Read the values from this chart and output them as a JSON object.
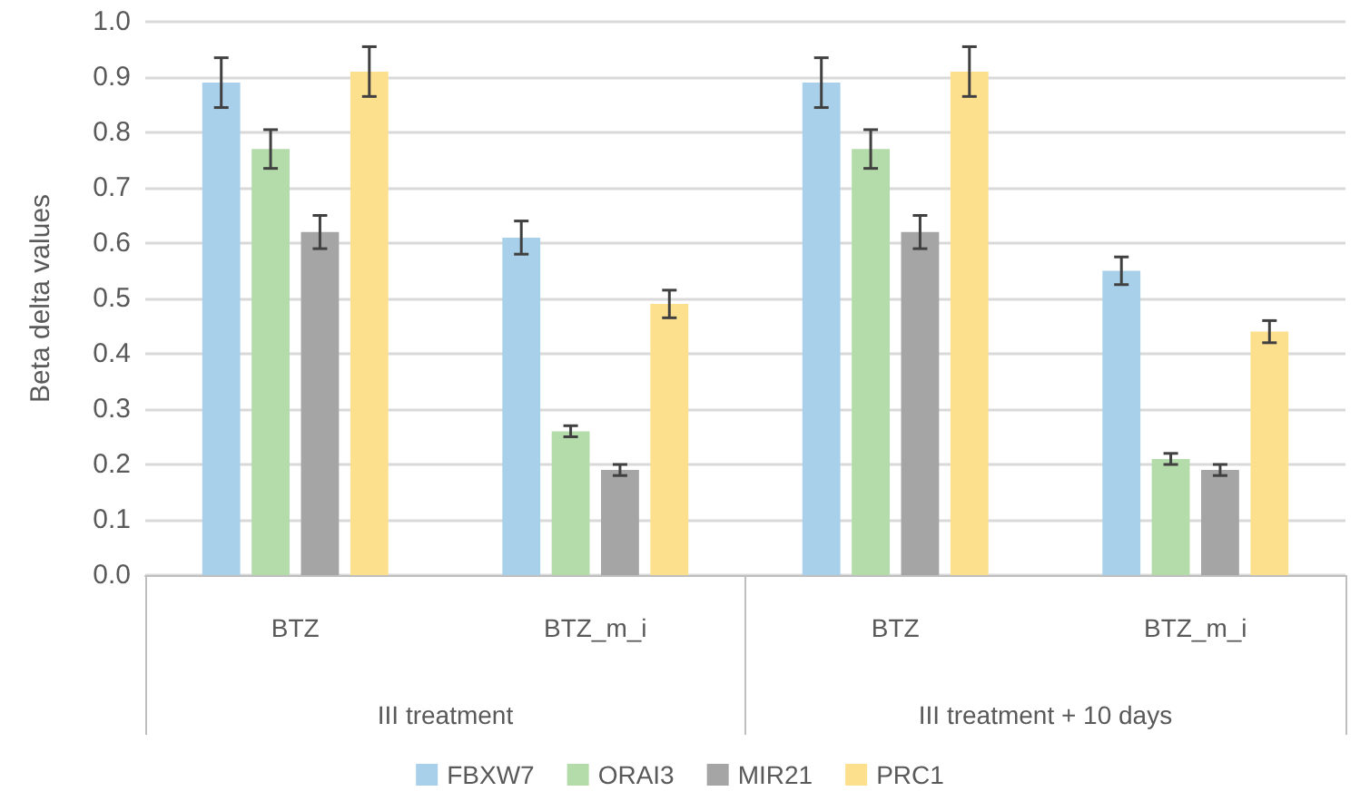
{
  "chart_data": {
    "type": "bar",
    "ylabel": "Beta delta values",
    "categories": [
      "BTZ",
      "BTZ_m_i",
      "BTZ",
      "BTZ_m_i"
    ],
    "annotations": [
      "III treatment",
      "III treatment + 10 days"
    ],
    "series": [
      {
        "name": "FBXW7",
        "color": "#a9d0eb",
        "values": [
          0.89,
          0.61,
          0.89,
          0.55
        ],
        "errors": [
          0.045,
          0.03,
          0.045,
          0.025
        ]
      },
      {
        "name": "ORAI3",
        "color": "#b3dcaa",
        "values": [
          0.77,
          0.26,
          0.77,
          0.21
        ],
        "errors": [
          0.035,
          0.01,
          0.035,
          0.01
        ]
      },
      {
        "name": "MIR21",
        "color": "#a5a5a5",
        "values": [
          0.62,
          0.19,
          0.62,
          0.19
        ],
        "errors": [
          0.03,
          0.01,
          0.03,
          0.01
        ]
      },
      {
        "name": "PRC1",
        "color": "#fde08e",
        "values": [
          0.91,
          0.49,
          0.91,
          0.44
        ],
        "errors": [
          0.045,
          0.025,
          0.045,
          0.02
        ]
      }
    ],
    "ylim": [
      0,
      1
    ],
    "yticks": [
      {
        "value": 0,
        "label": "0.0"
      },
      0.1,
      0.2,
      0.3,
      0.4,
      0.5,
      0.6,
      0.7,
      0.8,
      0.9,
      {
        "value": 1,
        "label": "1.0"
      }
    ],
    "grid": "y",
    "legend": "bottom"
  }
}
